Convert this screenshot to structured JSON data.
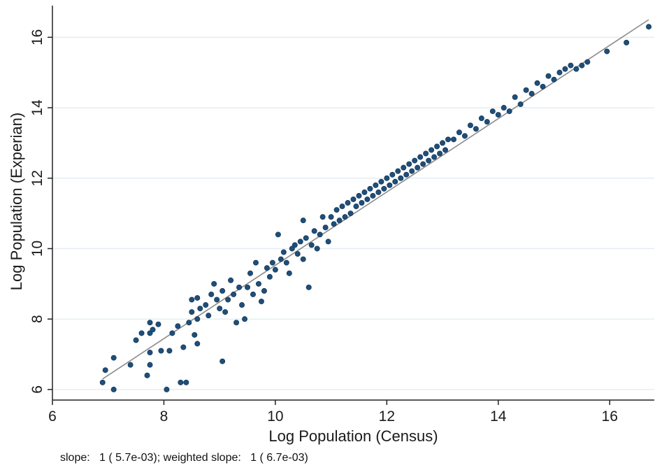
{
  "chart_data": {
    "type": "scatter",
    "title": "",
    "xlabel": "Log Population (Census)",
    "ylabel": "Log Population (Experian)",
    "xlim": [
      6,
      16.8
    ],
    "ylim": [
      5.7,
      16.9
    ],
    "xticks": [
      6,
      8,
      10,
      12,
      14,
      16
    ],
    "yticks": [
      6,
      8,
      10,
      12,
      14,
      16
    ],
    "grid": "horizontal",
    "marker_color": "#1f4e79",
    "fit_line": {
      "color": "#8c8c8c",
      "x": [
        6.9,
        16.7
      ],
      "y": [
        6.3,
        16.5
      ]
    },
    "series": [
      {
        "points": [
          [
            6.9,
            6.2
          ],
          [
            6.95,
            6.55
          ],
          [
            7.1,
            6.0
          ],
          [
            7.1,
            6.9
          ],
          [
            7.4,
            6.7
          ],
          [
            7.5,
            7.4
          ],
          [
            7.6,
            7.6
          ],
          [
            7.7,
            6.4
          ],
          [
            7.75,
            6.7
          ],
          [
            7.75,
            7.6
          ],
          [
            7.8,
            7.7
          ],
          [
            7.75,
            7.9
          ],
          [
            7.9,
            7.85
          ],
          [
            7.75,
            7.05
          ],
          [
            7.95,
            7.1
          ],
          [
            8.1,
            7.1
          ],
          [
            8.05,
            6.0
          ],
          [
            8.15,
            7.6
          ],
          [
            8.25,
            7.8
          ],
          [
            8.3,
            6.2
          ],
          [
            8.4,
            6.2
          ],
          [
            8.35,
            7.2
          ],
          [
            8.45,
            7.9
          ],
          [
            8.5,
            8.2
          ],
          [
            8.5,
            8.55
          ],
          [
            8.6,
            8.6
          ],
          [
            8.6,
            8.0
          ],
          [
            8.65,
            8.3
          ],
          [
            8.55,
            7.55
          ],
          [
            8.6,
            7.3
          ],
          [
            8.75,
            8.4
          ],
          [
            8.8,
            8.1
          ],
          [
            8.85,
            8.7
          ],
          [
            8.9,
            9.0
          ],
          [
            8.95,
            8.55
          ],
          [
            9.0,
            8.3
          ],
          [
            9.05,
            8.8
          ],
          [
            9.05,
            6.8
          ],
          [
            9.1,
            8.2
          ],
          [
            9.15,
            8.55
          ],
          [
            9.2,
            9.1
          ],
          [
            9.25,
            8.7
          ],
          [
            9.3,
            7.9
          ],
          [
            9.35,
            8.9
          ],
          [
            9.4,
            8.4
          ],
          [
            9.45,
            8.0
          ],
          [
            9.5,
            8.9
          ],
          [
            9.55,
            9.3
          ],
          [
            9.6,
            8.7
          ],
          [
            9.65,
            9.6
          ],
          [
            9.7,
            9.0
          ],
          [
            9.75,
            8.5
          ],
          [
            9.8,
            8.8
          ],
          [
            9.85,
            9.45
          ],
          [
            9.9,
            9.2
          ],
          [
            9.95,
            9.6
          ],
          [
            10.0,
            9.4
          ],
          [
            10.05,
            10.4
          ],
          [
            10.1,
            9.7
          ],
          [
            10.15,
            9.9
          ],
          [
            10.2,
            9.6
          ],
          [
            10.25,
            9.3
          ],
          [
            10.3,
            10.0
          ],
          [
            10.35,
            10.1
          ],
          [
            10.4,
            9.85
          ],
          [
            10.45,
            10.2
          ],
          [
            10.5,
            9.7
          ],
          [
            10.5,
            10.8
          ],
          [
            10.55,
            10.3
          ],
          [
            10.6,
            8.9
          ],
          [
            10.65,
            10.1
          ],
          [
            10.7,
            10.5
          ],
          [
            10.75,
            10.0
          ],
          [
            10.8,
            10.4
          ],
          [
            10.85,
            10.9
          ],
          [
            10.9,
            10.6
          ],
          [
            10.95,
            10.2
          ],
          [
            11.0,
            10.9
          ],
          [
            11.05,
            10.7
          ],
          [
            11.1,
            11.1
          ],
          [
            11.15,
            10.8
          ],
          [
            11.2,
            11.2
          ],
          [
            11.25,
            10.9
          ],
          [
            11.3,
            11.3
          ],
          [
            11.35,
            11.0
          ],
          [
            11.4,
            11.4
          ],
          [
            11.45,
            11.2
          ],
          [
            11.5,
            11.5
          ],
          [
            11.55,
            11.3
          ],
          [
            11.6,
            11.6
          ],
          [
            11.65,
            11.4
          ],
          [
            11.7,
            11.7
          ],
          [
            11.75,
            11.5
          ],
          [
            11.8,
            11.8
          ],
          [
            11.85,
            11.6
          ],
          [
            11.9,
            11.9
          ],
          [
            11.95,
            11.7
          ],
          [
            12.0,
            12.0
          ],
          [
            12.05,
            11.8
          ],
          [
            12.1,
            12.1
          ],
          [
            12.15,
            11.9
          ],
          [
            12.2,
            12.2
          ],
          [
            12.25,
            12.0
          ],
          [
            12.3,
            12.3
          ],
          [
            12.35,
            12.1
          ],
          [
            12.4,
            12.4
          ],
          [
            12.45,
            12.2
          ],
          [
            12.5,
            12.5
          ],
          [
            12.55,
            12.3
          ],
          [
            12.6,
            12.6
          ],
          [
            12.65,
            12.4
          ],
          [
            12.7,
            12.7
          ],
          [
            12.75,
            12.5
          ],
          [
            12.8,
            12.8
          ],
          [
            12.85,
            12.6
          ],
          [
            12.9,
            12.9
          ],
          [
            12.95,
            12.7
          ],
          [
            13.0,
            13.0
          ],
          [
            13.05,
            12.8
          ],
          [
            13.1,
            13.1
          ],
          [
            13.2,
            13.1
          ],
          [
            13.3,
            13.3
          ],
          [
            13.4,
            13.2
          ],
          [
            13.5,
            13.5
          ],
          [
            13.6,
            13.4
          ],
          [
            13.7,
            13.7
          ],
          [
            13.8,
            13.6
          ],
          [
            13.9,
            13.9
          ],
          [
            14.0,
            13.8
          ],
          [
            14.1,
            14.0
          ],
          [
            14.2,
            13.9
          ],
          [
            14.3,
            14.3
          ],
          [
            14.4,
            14.1
          ],
          [
            14.5,
            14.5
          ],
          [
            14.6,
            14.4
          ],
          [
            14.7,
            14.7
          ],
          [
            14.8,
            14.6
          ],
          [
            14.9,
            14.9
          ],
          [
            15.0,
            14.8
          ],
          [
            15.1,
            15.0
          ],
          [
            15.2,
            15.1
          ],
          [
            15.3,
            15.2
          ],
          [
            15.4,
            15.1
          ],
          [
            15.5,
            15.2
          ],
          [
            15.6,
            15.3
          ],
          [
            15.95,
            15.6
          ],
          [
            16.3,
            15.85
          ],
          [
            16.7,
            16.3
          ]
        ]
      }
    ]
  },
  "note": "slope:   1 ( 5.7e-03); weighted slope:   1 ( 6.7e-03)"
}
